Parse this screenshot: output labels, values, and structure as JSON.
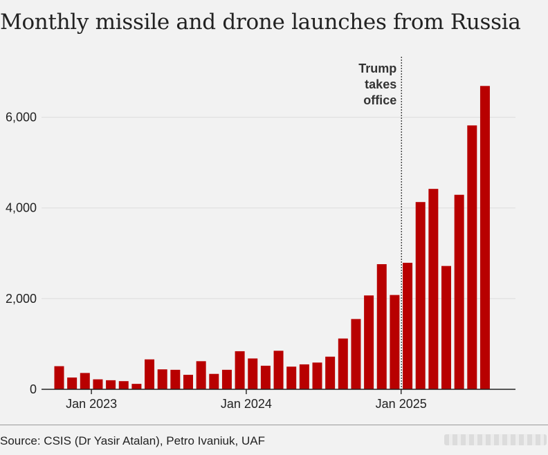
{
  "title": "Monthly missile and drone launches from Russia",
  "source": "Source: CSIS (Dr Yasir Atalan), Petro Ivaniuk, UAF",
  "colors": {
    "bar": "#b80000",
    "grid": "#dcdcdc",
    "axis": "#222222",
    "annotation_line": "#222222"
  },
  "chart_data": {
    "type": "bar",
    "title": "Monthly missile and drone launches from Russia",
    "xlabel": "",
    "ylabel": "",
    "ylim": [
      0,
      7000
    ],
    "y_ticks": [
      0,
      2000,
      4000,
      6000
    ],
    "y_tick_labels": [
      "0",
      "2,000",
      "4,000",
      "6,000"
    ],
    "x_tick_labels": [
      {
        "label": "Jan 2023",
        "category": "2023-01"
      },
      {
        "label": "Jan 2024",
        "category": "2024-01"
      },
      {
        "label": "Jan 2025",
        "category": "2025-01"
      }
    ],
    "grid": true,
    "categories": [
      "2022-10",
      "2022-11",
      "2022-12",
      "2023-01",
      "2023-02",
      "2023-03",
      "2023-04",
      "2023-05",
      "2023-06",
      "2023-07",
      "2023-08",
      "2023-09",
      "2023-10",
      "2023-11",
      "2023-12",
      "2024-01",
      "2024-02",
      "2024-03",
      "2024-04",
      "2024-05",
      "2024-06",
      "2024-07",
      "2024-08",
      "2024-09",
      "2024-10",
      "2024-11",
      "2024-12",
      "2025-01",
      "2025-02",
      "2025-03",
      "2025-04",
      "2025-05",
      "2025-06",
      "2025-07"
    ],
    "values": [
      510,
      260,
      360,
      220,
      200,
      180,
      120,
      660,
      440,
      430,
      320,
      620,
      340,
      430,
      840,
      680,
      520,
      850,
      500,
      550,
      590,
      720,
      1120,
      1550,
      2070,
      2760,
      2080,
      2790,
      4130,
      4420,
      2720,
      4290,
      5820,
      6690
    ],
    "annotations": [
      {
        "text": [
          "Trump",
          "takes",
          "office"
        ],
        "at_category": "2025-01"
      }
    ]
  }
}
